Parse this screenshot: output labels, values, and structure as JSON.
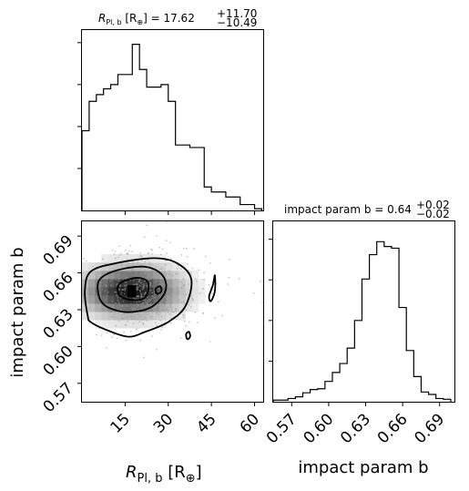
{
  "chart_data": [
    {
      "type": "histogram",
      "panel": "top-left",
      "title_main": "R",
      "title_sub": "Pl, b",
      "title_unit_open": " [R",
      "title_unit_sub": "⊕",
      "title_eq": "] = 17.62",
      "title_plus": "+11.70",
      "title_minus": "−10.49",
      "bin_edges": [
        0,
        2.5,
        5,
        7.5,
        10,
        12.5,
        15,
        17.5,
        20,
        22.5,
        25,
        27.5,
        30,
        32.5,
        35,
        37.5,
        40,
        42.5,
        45,
        47.5,
        50,
        52.5,
        55,
        57.5,
        60,
        62.5
      ],
      "counts": [
        95,
        130,
        138,
        145,
        150,
        162,
        162,
        198,
        168,
        147,
        147,
        150,
        130,
        78,
        78,
        75,
        75,
        28,
        22,
        22,
        16,
        16,
        7,
        7,
        2
      ],
      "ylim": [
        0,
        215
      ],
      "xlim": [
        0,
        63
      ]
    },
    {
      "type": "scatter-density",
      "panel": "bottom-left",
      "xlabel_main": "R",
      "xlabel_sub": "Pl, b",
      "xlabel_unit_open": " [R",
      "xlabel_unit_sub": "⊕",
      "xlabel_unit_close": "]",
      "ylabel": "impact param b",
      "xlim": [
        0,
        63
      ],
      "ylim": [
        0.555,
        0.702
      ],
      "xticks": [
        15,
        30,
        45,
        60
      ],
      "xtick_labels": [
        "15",
        "30",
        "45",
        "60"
      ],
      "yticks": [
        0.57,
        0.6,
        0.63,
        0.66,
        0.69
      ],
      "ytick_labels": [
        "0.57",
        "0.60",
        "0.63",
        "0.66",
        "0.69"
      ],
      "density_peak": {
        "x": 17,
        "y": 0.645
      },
      "contours": [
        [
          [
            2,
            0.625
          ],
          [
            1,
            0.645
          ],
          [
            3,
            0.661
          ],
          [
            12,
            0.668
          ],
          [
            25,
            0.672
          ],
          [
            33,
            0.668
          ],
          [
            38,
            0.655
          ],
          [
            36,
            0.633
          ],
          [
            30,
            0.62
          ],
          [
            22,
            0.612
          ],
          [
            16,
            0.608
          ],
          [
            8,
            0.614
          ],
          [
            3,
            0.62
          ]
        ],
        [
          [
            6,
            0.64
          ],
          [
            6,
            0.654
          ],
          [
            12,
            0.662
          ],
          [
            22,
            0.665
          ],
          [
            28,
            0.658
          ],
          [
            29,
            0.645
          ],
          [
            24,
            0.632
          ],
          [
            16,
            0.628
          ],
          [
            9,
            0.632
          ]
        ],
        [
          [
            13,
            0.642
          ],
          [
            13,
            0.651
          ],
          [
            19,
            0.656
          ],
          [
            23,
            0.652
          ],
          [
            22,
            0.64
          ],
          [
            17,
            0.638
          ]
        ],
        [
          [
            44.2,
            0.641
          ],
          [
            45.5,
            0.65
          ],
          [
            46.2,
            0.658
          ],
          [
            46.2,
            0.645
          ],
          [
            44.8,
            0.637
          ]
        ],
        [
          [
            25.6,
            0.647
          ],
          [
            27.2,
            0.649
          ],
          [
            27.6,
            0.645
          ],
          [
            26.0,
            0.643
          ]
        ],
        [
          [
            36.2,
            0.61
          ],
          [
            37.2,
            0.612
          ],
          [
            37.6,
            0.608
          ],
          [
            36.6,
            0.606
          ]
        ]
      ]
    },
    {
      "type": "histogram",
      "panel": "bottom-right",
      "title": "impact param b = 0.64",
      "title_plus": "+0.02",
      "title_minus": "−0.02",
      "xlabel": "impact param b",
      "xticks": [
        0.57,
        0.6,
        0.63,
        0.66,
        0.69
      ],
      "xtick_labels": [
        "0.57",
        "0.60",
        "0.63",
        "0.66",
        "0.69"
      ],
      "xlim": [
        0.555,
        0.702
      ],
      "bin_edges": [
        0.555,
        0.561,
        0.567,
        0.573,
        0.579,
        0.585,
        0.591,
        0.597,
        0.603,
        0.609,
        0.615,
        0.621,
        0.627,
        0.633,
        0.639,
        0.645,
        0.651,
        0.657,
        0.663,
        0.669,
        0.675,
        0.681,
        0.687,
        0.693,
        0.699
      ],
      "counts": [
        2,
        2,
        4,
        6,
        11,
        15,
        16,
        25,
        36,
        47,
        66,
        100,
        151,
        181,
        197,
        191,
        189,
        116,
        63,
        31,
        12,
        9,
        4,
        3
      ],
      "ylim": [
        0,
        222
      ]
    }
  ]
}
